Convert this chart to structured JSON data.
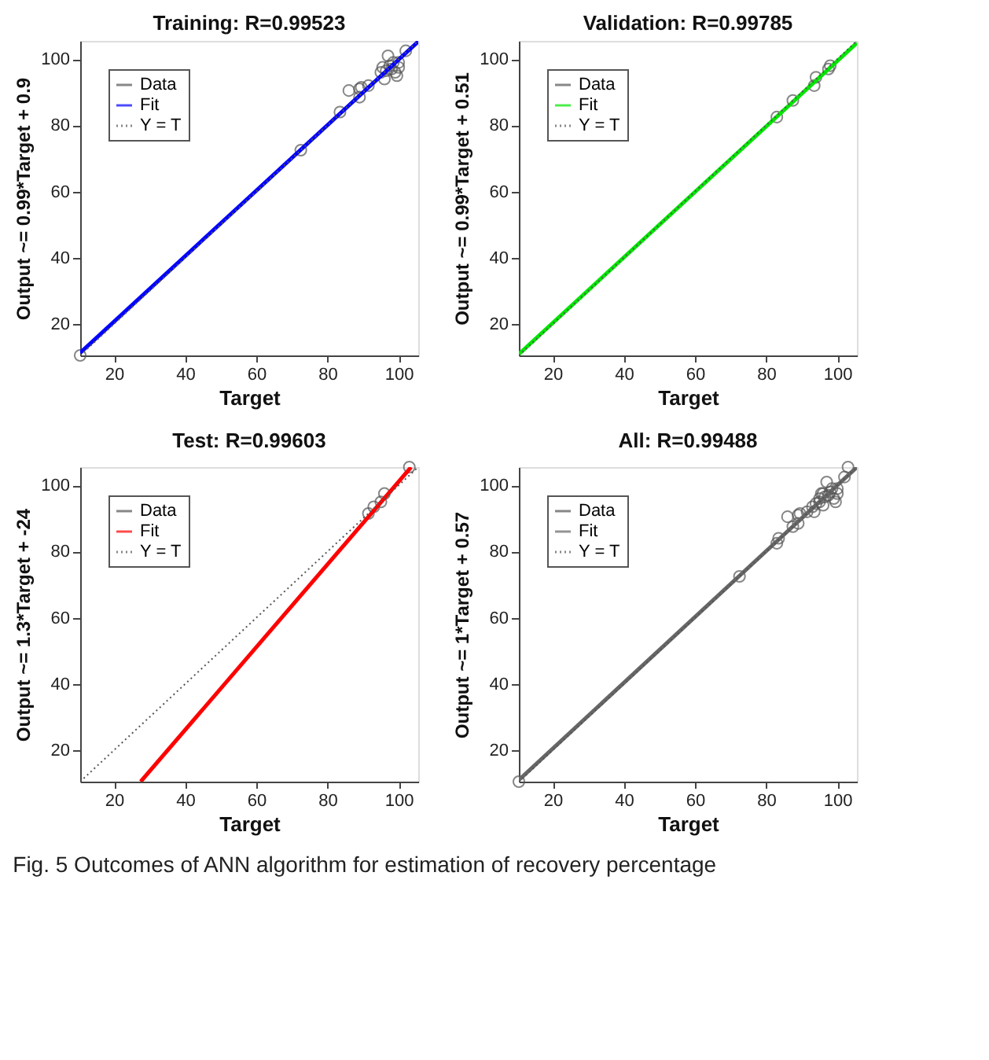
{
  "chart_data": [
    {
      "type": "scatter",
      "title": "Training: R=0.99523",
      "xlabel": "Target",
      "ylabel": "Output ~= 0.99*Target + 0.9",
      "xlim": [
        10.5,
        105.5
      ],
      "ylim": [
        10.5,
        105.5
      ],
      "xticks": [
        20,
        40,
        60,
        80,
        100
      ],
      "yticks": [
        20,
        40,
        60,
        80,
        100
      ],
      "grid": false,
      "legend": "top left",
      "series": [
        {
          "name": "Data",
          "marker": "circle",
          "color": "#555555",
          "x": [
            10.5,
            72.5,
            83.5,
            86,
            89,
            89,
            89.5,
            91.5,
            95,
            95.5,
            96,
            96.5,
            97,
            97.5,
            98,
            98.5,
            99,
            99.5,
            100,
            100,
            102
          ],
          "values": [
            10.5,
            72.5,
            84,
            90.5,
            91,
            88.5,
            91.5,
            92,
            96,
            97.5,
            94,
            96.5,
            101,
            98,
            97,
            99,
            96,
            95,
            97.5,
            99,
            102.5
          ]
        },
        {
          "name": "Fit",
          "type": "line",
          "marker": "none",
          "line_style": "solid",
          "color": "#0000ff",
          "x": [
            10.5,
            105.5
          ],
          "values": [
            11.3,
            105.3
          ]
        },
        {
          "name": "Y = T",
          "type": "line",
          "marker": "none",
          "line_style": "dotted",
          "color": "#555555",
          "x": [
            10.5,
            105.5
          ],
          "values": [
            10.5,
            105.5
          ]
        }
      ]
    },
    {
      "type": "scatter",
      "title": "Validation: R=0.99785",
      "xlabel": "Target",
      "ylabel": "Output ~= 0.99*Target + 0.51",
      "xlim": [
        10.5,
        105.5
      ],
      "ylim": [
        10.5,
        105.5
      ],
      "xticks": [
        20,
        40,
        60,
        80,
        100
      ],
      "yticks": [
        20,
        40,
        60,
        80,
        100
      ],
      "grid": false,
      "legend": "top left",
      "series": [
        {
          "name": "Data",
          "marker": "circle",
          "color": "#555555",
          "x": [
            83,
            87.5,
            93.5,
            94,
            97.5,
            98
          ],
          "values": [
            82.5,
            87.5,
            92,
            94.5,
            97,
            98
          ]
        },
        {
          "name": "Fit",
          "type": "line",
          "marker": "none",
          "line_style": "solid",
          "color": "#00e600",
          "x": [
            10.5,
            105.5
          ],
          "values": [
            10.9,
            104.9
          ]
        },
        {
          "name": "Y = T",
          "type": "line",
          "marker": "none",
          "line_style": "dotted",
          "color": "#555555",
          "x": [
            10.5,
            105.5
          ],
          "values": [
            10.5,
            105.5
          ]
        }
      ]
    },
    {
      "type": "scatter",
      "title": "Test: R=0.99603",
      "xlabel": "Target",
      "ylabel": "Output ~= 1.3*Target + -24",
      "xlim": [
        10.5,
        105.5
      ],
      "ylim": [
        10.5,
        105.5
      ],
      "xticks": [
        20,
        40,
        60,
        80,
        100
      ],
      "yticks": [
        20,
        40,
        60,
        80,
        100
      ],
      "grid": false,
      "legend": "top left",
      "series": [
        {
          "name": "Data",
          "marker": "circle",
          "color": "#555555",
          "x": [
            91.5,
            93,
            95,
            96,
            103
          ],
          "values": [
            91.5,
            93.5,
            95,
            97.5,
            105.5
          ]
        },
        {
          "name": "Fit",
          "type": "line",
          "marker": "none",
          "line_style": "solid",
          "color": "#ff0000",
          "x": [
            27.5,
            103.5
          ],
          "values": [
            10.5,
            105.5
          ]
        },
        {
          "name": "Y = T",
          "type": "line",
          "marker": "none",
          "line_style": "dotted",
          "color": "#555555",
          "x": [
            10.5,
            105.5
          ],
          "values": [
            10.5,
            105.5
          ]
        }
      ]
    },
    {
      "type": "scatter",
      "title": "All: R=0.99488",
      "xlabel": "Target",
      "ylabel": "Output ~= 1*Target + 0.57",
      "xlim": [
        10.5,
        105.5
      ],
      "ylim": [
        10.5,
        105.5
      ],
      "xticks": [
        20,
        40,
        60,
        80,
        100
      ],
      "yticks": [
        20,
        40,
        60,
        80,
        100
      ],
      "grid": false,
      "legend": "top left",
      "annotations": [
        "Fig. 5  Outcomes of ANN algorithm for estimation of recovery percentage"
      ],
      "series": [
        {
          "name": "Data",
          "marker": "circle",
          "color": "#555555",
          "x": [
            10.5,
            72.5,
            83,
            83.5,
            86,
            87.5,
            89,
            89,
            89.5,
            91.5,
            93,
            93.5,
            94,
            95,
            95,
            95.5,
            96,
            96,
            96.5,
            97,
            97.5,
            98,
            98.5,
            99,
            99.5,
            100,
            100,
            102,
            103
          ],
          "values": [
            10.5,
            72.5,
            82.5,
            84,
            90.5,
            87.5,
            91,
            88.5,
            91.5,
            92,
            93.5,
            92,
            94.5,
            96,
            95,
            97.5,
            94,
            97.5,
            96.5,
            101,
            97,
            98,
            99,
            96,
            95,
            97.5,
            99,
            102.5,
            105.5
          ]
        },
        {
          "name": "Fit",
          "type": "line",
          "marker": "none",
          "line_style": "solid",
          "color": "#666666",
          "x": [
            10.5,
            105.5
          ],
          "values": [
            11,
            105.5
          ]
        },
        {
          "name": "Y = T",
          "type": "line",
          "marker": "none",
          "line_style": "dotted",
          "color": "#555555",
          "x": [
            10.5,
            105.5
          ],
          "values": [
            10.5,
            105.5
          ]
        }
      ]
    }
  ]
}
